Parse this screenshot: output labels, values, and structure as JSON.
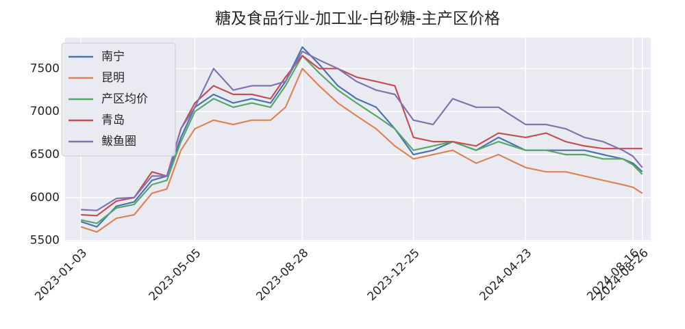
{
  "chart_data": {
    "type": "line",
    "title": "糖及食品行业-加工业-白砂糖-主产区价格",
    "x": [
      "2023-01-03",
      "2023-01-20",
      "2023-02-10",
      "2023-03-01",
      "2023-03-20",
      "2023-04-05",
      "2023-04-20",
      "2023-05-05",
      "2023-05-25",
      "2023-06-15",
      "2023-07-05",
      "2023-07-25",
      "2023-08-10",
      "2023-08-28",
      "2023-09-15",
      "2023-10-05",
      "2023-10-25",
      "2023-11-15",
      "2023-12-05",
      "2023-12-25",
      "2024-01-15",
      "2024-02-05",
      "2024-03-01",
      "2024-03-25",
      "2024-04-23",
      "2024-05-15",
      "2024-06-05",
      "2024-06-25",
      "2024-07-15",
      "2024-08-05",
      "2024-08-16",
      "2024-08-26"
    ],
    "series": [
      {
        "name": "南宁",
        "color": "#4c72b0",
        "values": [
          5720,
          5660,
          5900,
          5950,
          6200,
          6250,
          6700,
          7050,
          7200,
          7100,
          7150,
          7100,
          7350,
          7750,
          7550,
          7300,
          7150,
          7050,
          6800,
          6500,
          6550,
          6650,
          6550,
          6700,
          6550,
          6550,
          6550,
          6550,
          6500,
          6450,
          6400,
          6300
        ]
      },
      {
        "name": "昆明",
        "color": "#dd8452",
        "values": [
          5660,
          5600,
          5760,
          5800,
          6050,
          6100,
          6550,
          6800,
          6900,
          6850,
          6900,
          6900,
          7050,
          7500,
          7300,
          7100,
          6950,
          6800,
          6600,
          6450,
          6500,
          6550,
          6400,
          6500,
          6350,
          6300,
          6300,
          6250,
          6200,
          6150,
          6120,
          6050
        ]
      },
      {
        "name": "产区均价",
        "color": "#55a868",
        "values": [
          5740,
          5700,
          5880,
          5920,
          6150,
          6200,
          6650,
          7000,
          7150,
          7050,
          7100,
          7050,
          7300,
          7650,
          7450,
          7250,
          7100,
          6950,
          6800,
          6550,
          6600,
          6650,
          6550,
          6650,
          6550,
          6550,
          6500,
          6500,
          6450,
          6450,
          6380,
          6270
        ]
      },
      {
        "name": "青岛",
        "color": "#c44e52",
        "values": [
          5800,
          5790,
          5960,
          6000,
          6300,
          6250,
          6800,
          7100,
          7300,
          7200,
          7200,
          7150,
          7400,
          7650,
          7500,
          7500,
          7400,
          7350,
          7300,
          6700,
          6650,
          6650,
          6600,
          6750,
          6700,
          6750,
          6650,
          6600,
          6570,
          6570,
          6570,
          6570
        ]
      },
      {
        "name": "鲅鱼圈",
        "color": "#8172b3",
        "values": [
          5860,
          5850,
          5990,
          6000,
          6250,
          6250,
          6800,
          7050,
          7500,
          7250,
          7300,
          7300,
          7350,
          7700,
          7600,
          7500,
          7350,
          7250,
          7200,
          6900,
          6850,
          7150,
          7050,
          7050,
          6850,
          6850,
          6800,
          6700,
          6650,
          6550,
          6480,
          6350
        ]
      }
    ],
    "xlim": [
      "2022-12-17",
      "2024-09-04"
    ],
    "xticks": [
      "2023-01-03",
      "2023-05-05",
      "2023-08-28",
      "2023-12-25",
      "2024-04-23",
      "2024-08-16",
      "2024-08-26"
    ],
    "ylim": [
      5490,
      7860
    ],
    "yticks": [
      5500,
      6000,
      6500,
      7000,
      7500
    ],
    "grid": true,
    "legend": "upper left",
    "background": "#eaeaf2"
  }
}
